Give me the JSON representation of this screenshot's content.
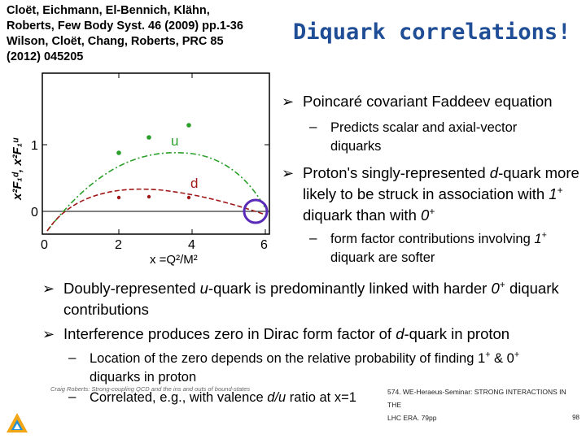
{
  "citation": {
    "line1": "Cloët, Eichmann, El-Bennich, Klähn,",
    "line2": "Roberts, Few Body Syst. 46 (2009) pp.1-36",
    "line3": "Wilson, Cloët, Chang, Roberts, PRC 85",
    "line4": "(2012) 045205"
  },
  "title": "Diquark correlations!",
  "plot": {
    "y_tick_1": "1",
    "y_tick_0": "0",
    "x_ticks": [
      "0",
      "2",
      "4",
      "6"
    ],
    "xlabel": "x =Q²/M²",
    "ylabel": "x²F₁ᵈ, x²F₁ᵘ",
    "label_u": "u",
    "label_d": "d",
    "colors": {
      "u_curve": "#2aa02a",
      "d_curve": "#a01818",
      "highlight": "#5a2ab8"
    }
  },
  "bullets": {
    "b1": "Poincaré covariant Faddeev equation",
    "b1_sub": "Predicts scalar and axial-vector diquarks",
    "b2_pre": "Proton's singly-represented ",
    "b2_q": "d",
    "b2_mid": "-quark more likely to be struck in association with ",
    "b2_one": "1",
    "b2_sup1": "+",
    "b2_mid2": " diquark than with ",
    "b2_zero": "0",
    "b2_sup2": "+",
    "b2_sub_pre": "form factor contributions involving ",
    "b2_sub_one": "1",
    "b2_sub_sup": "+",
    "b2_sub_post": " diquark are softer",
    "b3_pre": "Doubly-represented ",
    "b3_q": "u",
    "b3_mid": "-quark is predominantly linked with harder ",
    "b3_zero": "0",
    "b3_sup": "+",
    "b3_post": " diquark contributions",
    "b4_pre": "Interference produces zero in Dirac form factor of ",
    "b4_q": "d",
    "b4_post": "-quark in proton",
    "b4_sub1_a": "Location of the zero depends on the relative probability of finding ",
    "b4_sub1_one": "1",
    "b4_sub1_sup1": "+",
    "b4_sub1_amp": " & ",
    "b4_sub1_zero": "0",
    "b4_sub1_sup2": "+",
    "b4_sub1_post": " diquarks in proton",
    "b4_sub2_pre": "Correlated, e.g.,  with valence  ",
    "b4_sub2_ratio": "d/u",
    "b4_sub2_post": "  ratio at x=1"
  },
  "footer": {
    "left": "Craig Roberts: Strong-coupling QCD and the ins and outs of bound-states",
    "right_line1": "574. WE-Heraeus-Seminar: STRONG INTERACTIONS IN THE",
    "right_line2": "LHC ERA. 79pp",
    "page": "98"
  },
  "icons": {
    "bullet": "arrow-bullet-icon",
    "logo": "institution-logo-icon"
  }
}
